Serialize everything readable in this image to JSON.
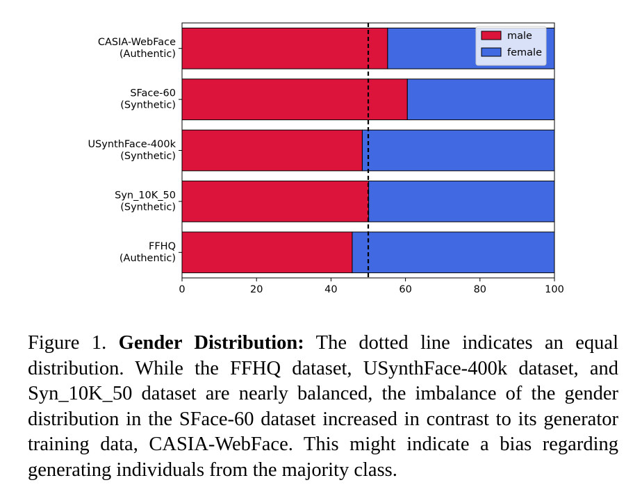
{
  "chart_data": {
    "type": "bar",
    "orientation": "horizontal",
    "stacked": true,
    "categories": [
      [
        "CASIA-WebFace",
        "(Authentic)"
      ],
      [
        "SFace-60",
        "(Synthetic)"
      ],
      [
        "USynthFace-400k",
        "(Synthetic)"
      ],
      [
        "Syn_10K_50",
        "(Synthetic)"
      ],
      [
        "FFHQ",
        "(Authentic)"
      ]
    ],
    "series": [
      {
        "name": "male",
        "color": "#dc143c",
        "values": [
          55.2,
          60.5,
          48.4,
          50.1,
          45.7
        ]
      },
      {
        "name": "female",
        "color": "#4169e1",
        "values": [
          44.8,
          39.5,
          51.6,
          49.9,
          54.3
        ]
      }
    ],
    "xlim": [
      0,
      100
    ],
    "xticks": [
      "0",
      "20",
      "40",
      "60",
      "80",
      "100"
    ],
    "reference_line": {
      "x": 50,
      "style": "dashed"
    },
    "legend_position": "top-right",
    "grid": false,
    "title": "",
    "xlabel": "",
    "ylabel": ""
  },
  "caption": {
    "label": "Figure 1.",
    "bold": "Gender Distribution:",
    "text": "The dotted line indicates an equal distribution. While the FFHQ dataset, USynthFace-400k dataset, and Syn_10K_50 dataset are nearly balanced, the imbalance of the gender distribution in the SFace-60 dataset increased in contrast to its generator training data, CASIA-WebFace. This might indicate a bias regarding generating individuals from the majority class."
  }
}
